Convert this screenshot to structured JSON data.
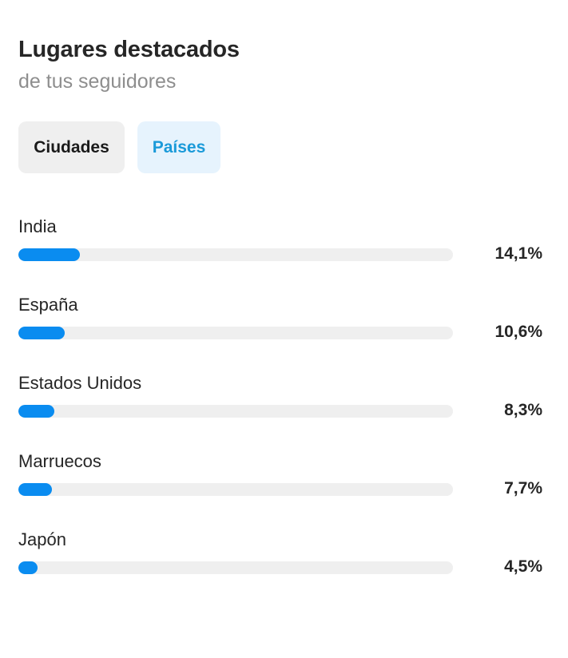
{
  "header": {
    "title": "Lugares destacados",
    "subtitle": "de tus seguidores"
  },
  "tabs": [
    {
      "label": "Ciudades",
      "selected": false
    },
    {
      "label": "Países",
      "selected": true
    }
  ],
  "colors": {
    "bar_fill": "#0a8cf0",
    "bar_track": "#efefef",
    "active_tab_bg": "#e6f3fd",
    "active_tab_text": "#1a9ad9"
  },
  "locations": [
    {
      "name": "India",
      "value": "14,1%",
      "fraction": 0.141
    },
    {
      "name": "España",
      "value": "10,6%",
      "fraction": 0.106
    },
    {
      "name": "Estados Unidos",
      "value": "8,3%",
      "fraction": 0.083
    },
    {
      "name": "Marruecos",
      "value": "7,7%",
      "fraction": 0.077
    },
    {
      "name": "Japón",
      "value": "4,5%",
      "fraction": 0.045
    }
  ]
}
